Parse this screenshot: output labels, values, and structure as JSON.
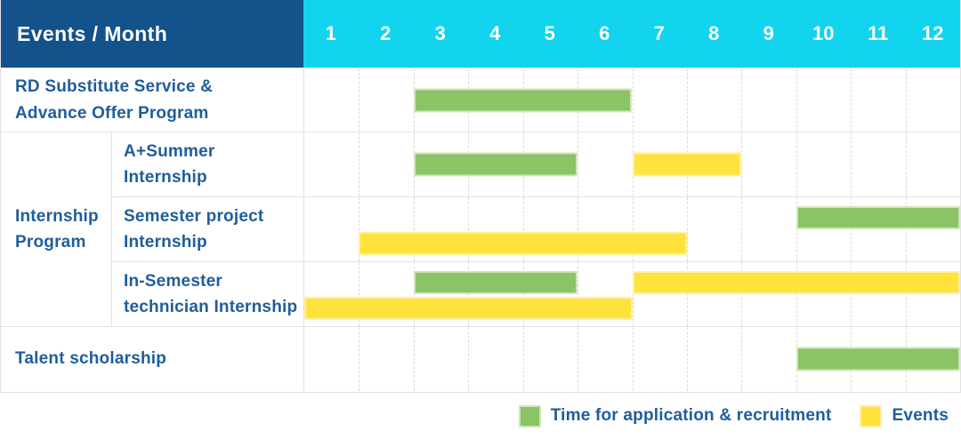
{
  "colors": {
    "header_bg": "#14528b",
    "months_bg": "#12d4ee",
    "text_blue": "#1f5d9c",
    "grid": "#e4e4e4",
    "recruitment": "#8ac464",
    "recruitment_border": "#cfe6ba",
    "event": "#ffe33c",
    "event_border": "#fff0a0"
  },
  "header": {
    "title": "Events / Month"
  },
  "chart_data": {
    "type": "table",
    "subtype": "gantt",
    "x_unit": "month",
    "x_range": [
      1,
      12
    ],
    "months": [
      "1",
      "2",
      "3",
      "4",
      "5",
      "6",
      "7",
      "8",
      "9",
      "10",
      "11",
      "12"
    ],
    "group_label": "Internship\nProgram",
    "rows": [
      {
        "label": "RD Substitute Service &\nAdvance Offer Program",
        "group": null,
        "bars": [
          {
            "type": "recruitment",
            "start_month": 3,
            "end_month": 6,
            "track": "center"
          }
        ]
      },
      {
        "label": "A+Summer\nInternship",
        "group": "Internship Program",
        "bars": [
          {
            "type": "recruitment",
            "start_month": 3,
            "end_month": 5,
            "track": "center"
          },
          {
            "type": "event",
            "start_month": 7,
            "end_month": 8,
            "track": "center"
          }
        ]
      },
      {
        "label": "Semester project\nInternship",
        "group": "Internship Program",
        "bars": [
          {
            "type": "recruitment",
            "start_month": 10,
            "end_month": 12,
            "track": "top"
          },
          {
            "type": "event",
            "start_month": 2,
            "end_month": 7,
            "track": "bottom"
          }
        ]
      },
      {
        "label": "In-Semester\ntechnician Internship",
        "group": "Internship Program",
        "bars": [
          {
            "type": "recruitment",
            "start_month": 3,
            "end_month": 5,
            "track": "top"
          },
          {
            "type": "event",
            "start_month": 7,
            "end_month": 12,
            "track": "top"
          },
          {
            "type": "event",
            "start_month": 1,
            "end_month": 6,
            "track": "bottom"
          }
        ]
      },
      {
        "label": "Talent scholarship",
        "group": null,
        "bars": [
          {
            "type": "recruitment",
            "start_month": 10,
            "end_month": 12,
            "track": "center"
          }
        ]
      }
    ],
    "legend": [
      {
        "type": "recruitment",
        "label": "Time for application & recruitment",
        "color": "#8ac464"
      },
      {
        "type": "event",
        "label": "Events",
        "color": "#ffe33c"
      }
    ],
    "legend_position": "bottom-right",
    "grid": "dashed-vertical-month-lines"
  }
}
